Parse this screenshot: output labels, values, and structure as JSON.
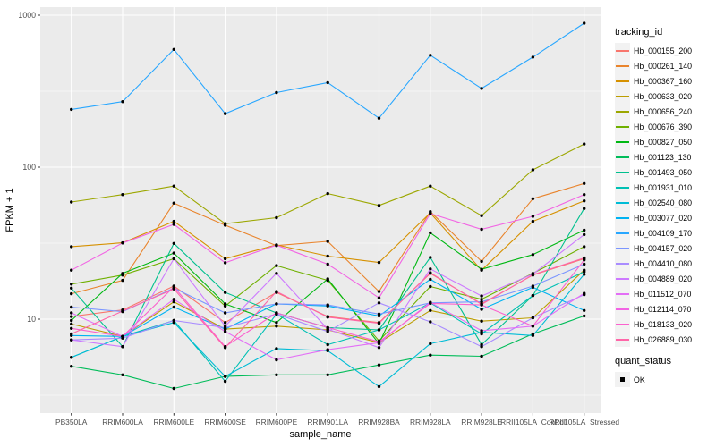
{
  "figure": {
    "background": "#FFFFFF",
    "panel_background": "#EBEBEB",
    "grid_color": "#FFFFFF",
    "tick_text_color": "#4D4D4D",
    "tick_mark_color": "#333333",
    "axis_title_color": "#000000",
    "point_color": "#000000",
    "legend_key_background": "#F2F2F2"
  },
  "chart_data": {
    "type": "line",
    "title": "",
    "xlabel": "sample_name",
    "ylabel": "FPKM + 1",
    "y_scale": "log10",
    "y_ticks": [
      10,
      100,
      1000
    ],
    "y_tick_labels": [
      "10",
      "100",
      "1000"
    ],
    "y_minor": [
      3.162,
      31.623,
      316.228
    ],
    "ylim": [
      2.4,
      1130
    ],
    "grid": true,
    "legend_position": "right",
    "legend_title": "tracking_id",
    "legend2_title": "quant_status",
    "legend2_items": [
      {
        "label": "OK",
        "shape": "solid-square-point"
      }
    ],
    "categories": [
      "PB350LA",
      "RRIM600LA",
      "RRIM600LE",
      "RRIM600SE",
      "RRIM600PE",
      "RRIM901LA",
      "RRIM928BA",
      "RRIM928LA",
      "RRIM928LE",
      "RRII105LA_Control",
      "RRII105LA_Stressed"
    ],
    "series": [
      {
        "name": "Hb_000155_200",
        "color": "#F8766D",
        "values": [
          10.4,
          11.5,
          16.5,
          9.5,
          15.0,
          10.4,
          9.5,
          20.0,
          12.6,
          19.5,
          25.0
        ]
      },
      {
        "name": "Hb_000261_140",
        "color": "#E9842C",
        "values": [
          14.7,
          18.0,
          58.0,
          41.5,
          30.5,
          32.5,
          15.2,
          51.0,
          24.0,
          62.0,
          78.0
        ]
      },
      {
        "name": "Hb_000367_160",
        "color": "#D69100",
        "values": [
          30.0,
          31.8,
          44.0,
          25.0,
          30.8,
          26.0,
          23.6,
          50.0,
          21.0,
          44.0,
          60.0
        ]
      },
      {
        "name": "Hb_000633_020",
        "color": "#BC9D00",
        "values": [
          9.3,
          7.7,
          13.0,
          8.6,
          9.0,
          8.5,
          7.0,
          11.4,
          9.7,
          10.2,
          21.0
        ]
      },
      {
        "name": "Hb_000656_240",
        "color": "#9CA700",
        "values": [
          59,
          66,
          75,
          42.5,
          46.5,
          67,
          56,
          75,
          48,
          96,
          142
        ]
      },
      {
        "name": "Hb_000676_390",
        "color": "#6FB000",
        "values": [
          17.0,
          19.5,
          25.0,
          12.2,
          22.5,
          18.0,
          7.2,
          16.4,
          13.5,
          20.0,
          30.0
        ]
      },
      {
        "name": "Hb_000827_050",
        "color": "#00B813",
        "values": [
          9.8,
          20.0,
          27.2,
          12.6,
          9.5,
          18.4,
          6.9,
          37.0,
          21.3,
          26.6,
          38.5
        ]
      },
      {
        "name": "Hb_001123_130",
        "color": "#00BC59",
        "values": [
          4.9,
          4.3,
          3.5,
          4.2,
          4.3,
          4.3,
          5.0,
          5.8,
          5.7,
          8.0,
          10.5
        ]
      },
      {
        "name": "Hb_001493_050",
        "color": "#00C08E",
        "values": [
          16.0,
          6.6,
          31.5,
          15.0,
          11.0,
          8.8,
          8.5,
          25.5,
          6.8,
          14.3,
          53.5
        ]
      },
      {
        "name": "Hb_001931_010",
        "color": "#00C0B4",
        "values": [
          5.6,
          7.7,
          9.8,
          3.9,
          10.8,
          6.8,
          8.5,
          12.8,
          8.0,
          14.3,
          20.5
        ]
      },
      {
        "name": "Hb_002540_080",
        "color": "#00BCD6",
        "values": [
          5.6,
          7.7,
          9.5,
          4.2,
          6.4,
          6.2,
          3.6,
          6.9,
          8.2,
          7.8,
          19.7
        ]
      },
      {
        "name": "Hb_003077_020",
        "color": "#00B3F2",
        "values": [
          7.8,
          7.7,
          12.0,
          8.6,
          12.6,
          12.2,
          10.5,
          18.3,
          11.6,
          16.2,
          11.4
        ]
      },
      {
        "name": "Hb_004109_170",
        "color": "#29A7FF",
        "values": [
          240,
          270,
          595,
          225,
          310,
          360,
          210,
          545,
          330,
          530,
          885
        ]
      },
      {
        "name": "Hb_004157_020",
        "color": "#7C96FF",
        "values": [
          12.0,
          11.2,
          16.0,
          11.0,
          12.6,
          12.4,
          10.8,
          12.8,
          13.0,
          16.5,
          23.0
        ]
      },
      {
        "name": "Hb_004410_080",
        "color": "#A98CFF",
        "values": [
          7.3,
          7.5,
          9.8,
          8.8,
          10.8,
          8.3,
          12.8,
          9.6,
          6.6,
          10.2,
          14.5
        ]
      },
      {
        "name": "Hb_004889_020",
        "color": "#CD79FF",
        "values": [
          7.3,
          6.6,
          25.0,
          9.0,
          20.0,
          8.6,
          6.5,
          21.4,
          14.2,
          19.8,
          36.0
        ]
      },
      {
        "name": "Hb_011512_070",
        "color": "#E36EF6",
        "values": [
          11.0,
          7.7,
          13.5,
          8.3,
          5.4,
          6.3,
          7.0,
          12.9,
          8.4,
          9.0,
          14.8
        ]
      },
      {
        "name": "Hb_012114_070",
        "color": "#F264E4",
        "values": [
          21.0,
          31.7,
          42.0,
          23.5,
          30.7,
          23.0,
          13.8,
          49.5,
          39.0,
          47.5,
          66.0
        ]
      },
      {
        "name": "Hb_018133_020",
        "color": "#FB61CE",
        "values": [
          8.7,
          7.7,
          16.3,
          6.6,
          11.0,
          8.8,
          7.1,
          12.7,
          12.4,
          9.0,
          24.5
        ]
      },
      {
        "name": "Hb_026889_030",
        "color": "#FF66A8",
        "values": [
          8.0,
          11.3,
          15.8,
          6.5,
          15.2,
          10.3,
          9.4,
          20.2,
          12.5,
          19.6,
          25.3
        ]
      }
    ]
  }
}
